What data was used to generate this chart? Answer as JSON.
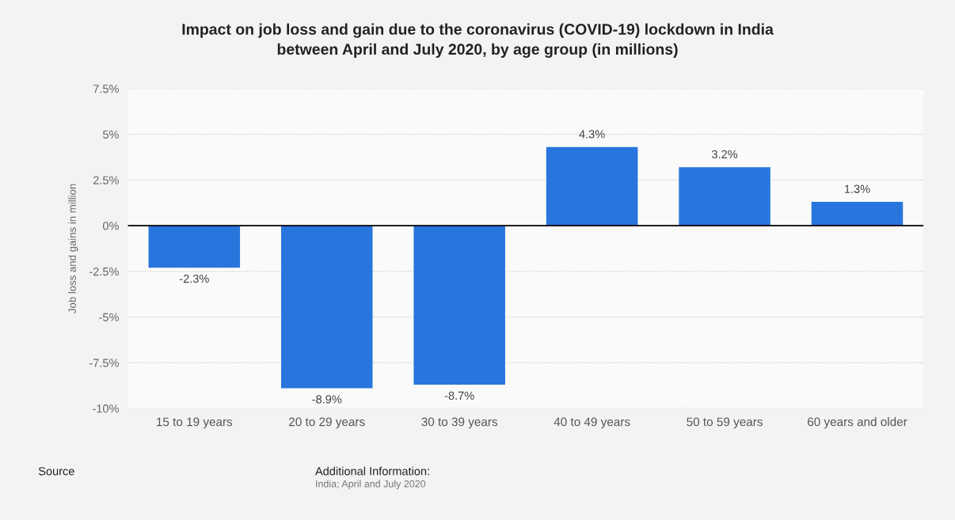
{
  "chart_data": {
    "type": "bar",
    "title": "Impact on job loss and gain due to the coronavirus (COVID-19) lockdown in India\nbetween April and July 2020, by age group (in millions)",
    "ylabel": "Job loss and gains in million",
    "categories": [
      "15 to 19 years",
      "20 to 29 years",
      "30 to 39 years",
      "40 to 49 years",
      "50 to 59 years",
      "60 years and older"
    ],
    "values": [
      -2.3,
      -8.9,
      -8.7,
      4.3,
      3.2,
      1.3
    ],
    "value_labels": [
      "-2.3%",
      "-8.9%",
      "-8.7%",
      "4.3%",
      "3.2%",
      "1.3%"
    ],
    "color": "#2876dd",
    "ylim": [
      -10,
      7.5
    ],
    "yticks": [
      {
        "value": -10,
        "label": "-10%"
      },
      {
        "value": -7.5,
        "label": "-7.5%"
      },
      {
        "value": -5,
        "label": "-5%"
      },
      {
        "value": -2.5,
        "label": "-2.5%"
      },
      {
        "value": 0,
        "label": "0%"
      },
      {
        "value": 2.5,
        "label": "2.5%"
      },
      {
        "value": 5,
        "label": "5%"
      },
      {
        "value": 7.5,
        "label": "7.5%"
      }
    ],
    "grid": "y",
    "ref_lines": [
      {
        "axis": "y",
        "value": 0,
        "color": "#000000"
      }
    ],
    "annotations": [
      "Source",
      "Additional Information:",
      "India; April and July 2020"
    ]
  }
}
